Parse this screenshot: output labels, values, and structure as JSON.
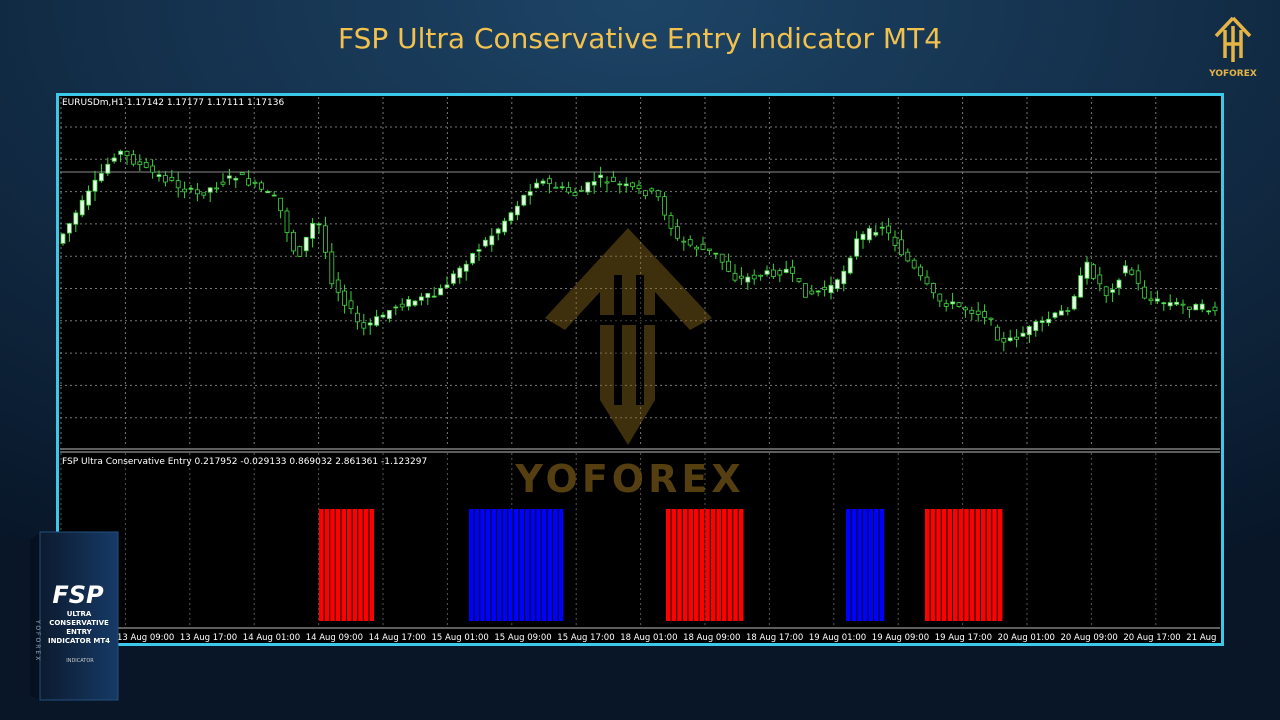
{
  "header": {
    "title": "FSP Ultra Conservative Entry Indicator MT4",
    "brand": "YOFOREX"
  },
  "chart": {
    "header": "EURUSDm,H1  1.17142 1.17177 1.17111 1.17136",
    "indicator_header": "FSP Ultra Conservative Entry 0.217952 -0.029133 0.869032 2.861361 -1.123297",
    "watermark": "YOFOREX",
    "time_labels": [
      "13 Aug 09:00",
      "13 Aug 17:00",
      "14 Aug 01:00",
      "14 Aug 09:00",
      "14 Aug 17:00",
      "15 Aug 01:00",
      "15 Aug 09:00",
      "15 Aug 17:00",
      "18 Aug 01:00",
      "18 Aug 09:00",
      "18 Aug 17:00",
      "19 Aug 01:00",
      "19 Aug 09:00",
      "19 Aug 17:00",
      "20 Aug 01:00",
      "20 Aug 09:00",
      "20 Aug 17:00",
      "21 Aug"
    ]
  },
  "product_box": {
    "name": "FSP",
    "subtitle": "ULTRA CONSERVATIVE ENTRY INDICATOR MT4",
    "brand": "YOFOREX",
    "label": "INDICATOR"
  }
}
